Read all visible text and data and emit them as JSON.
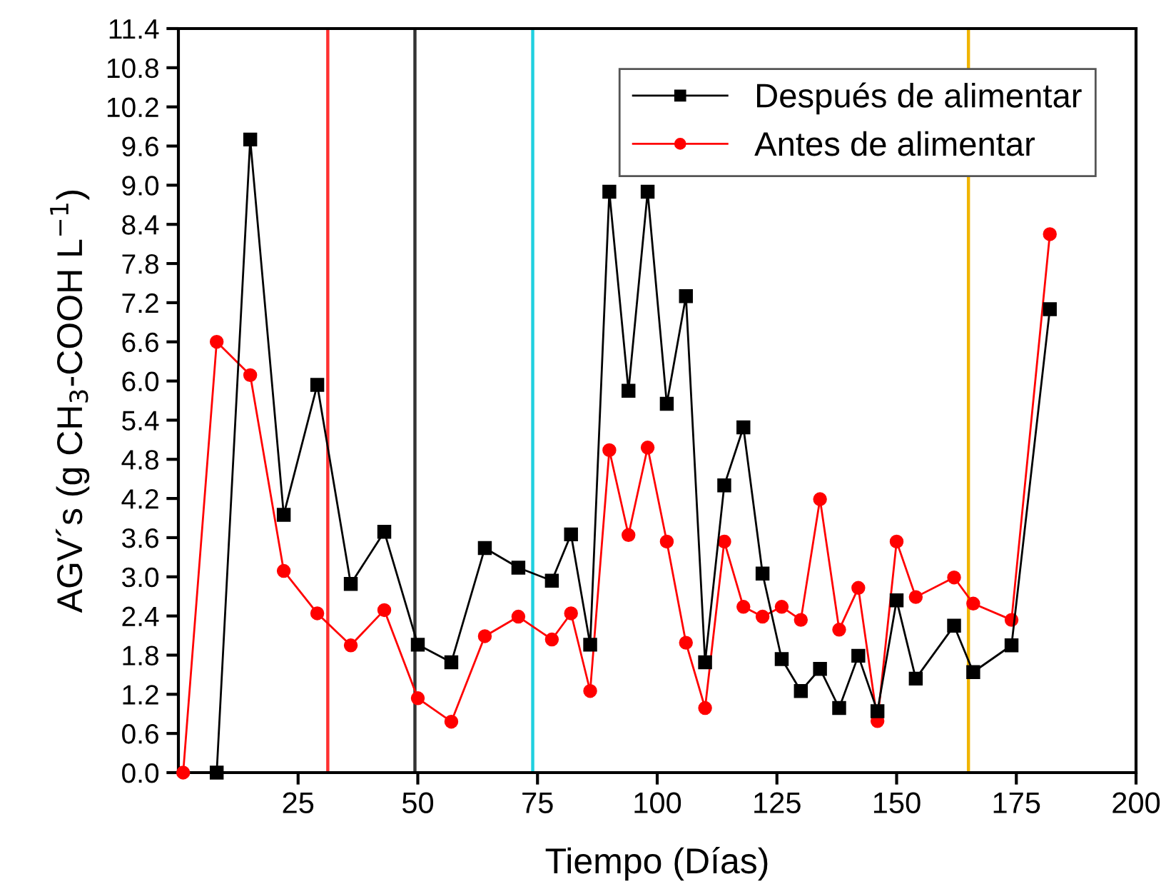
{
  "chart_data": {
    "type": "line",
    "xlabel": "Tiempo (Días)",
    "ylabel": "AGV´s (g CH$_{3}$-COOH L$^{−1}$)",
    "xlim": [
      0,
      200
    ],
    "xticks": [
      25,
      50,
      75,
      100,
      125,
      150,
      175,
      200
    ],
    "ylim": [
      0,
      11.4
    ],
    "yticks": [
      {
        "value": 0,
        "label": "0.0"
      },
      0.6,
      1.2,
      1.8,
      2.4,
      {
        "value": 3,
        "label": "3.0"
      },
      3.6,
      4.2,
      4.8,
      5.4,
      {
        "value": 6,
        "label": "6.0"
      },
      6.6,
      7.2,
      7.8,
      8.4,
      {
        "value": 9,
        "label": "9.0"
      },
      9.6,
      10.2,
      10.8,
      11.4
    ],
    "grid": false,
    "legend": "top right",
    "series": [
      {
        "name": "Después de alimentar",
        "color": "#000000",
        "marker": "square",
        "x": [
          8,
          15,
          22,
          29,
          36,
          43,
          50,
          57,
          64,
          71,
          78,
          82,
          86,
          90,
          94,
          98,
          102,
          106,
          110,
          114,
          118,
          122,
          126,
          130,
          134,
          138,
          142,
          146,
          150,
          154,
          162,
          166,
          174,
          182
        ],
        "values": [
          0,
          9.7,
          3.95,
          5.94,
          2.89,
          3.69,
          1.96,
          1.69,
          3.44,
          3.14,
          2.94,
          3.65,
          1.96,
          8.9,
          5.85,
          8.9,
          5.65,
          7.3,
          1.69,
          4.4,
          5.29,
          3.05,
          1.74,
          1.25,
          1.59,
          0.99,
          1.79,
          0.94,
          2.64,
          1.44,
          2.25,
          1.54,
          1.95,
          7.1
        ]
      },
      {
        "name": "Antes de alimentar",
        "color": "#ff0000",
        "marker": "circle",
        "x": [
          1,
          8,
          15,
          22,
          29,
          36,
          43,
          50,
          57,
          64,
          71,
          78,
          82,
          86,
          90,
          94,
          98,
          102,
          106,
          110,
          114,
          118,
          122,
          126,
          130,
          134,
          138,
          142,
          146,
          150,
          154,
          162,
          166,
          174,
          182
        ],
        "values": [
          0,
          6.6,
          6.09,
          3.09,
          2.44,
          1.95,
          2.49,
          1.14,
          0.78,
          2.09,
          2.39,
          2.04,
          2.44,
          1.25,
          4.94,
          3.64,
          4.98,
          3.54,
          1.99,
          0.99,
          3.54,
          2.54,
          2.39,
          2.54,
          2.34,
          4.19,
          2.19,
          2.83,
          0.79,
          3.54,
          2.69,
          2.99,
          2.59,
          2.34,
          8.25
        ]
      }
    ],
    "ref_lines": [
      {
        "axis": "x",
        "value": 31.2,
        "color": "#ff3030"
      },
      {
        "axis": "x",
        "value": 49.4,
        "color": "#333333"
      },
      {
        "axis": "x",
        "value": 74,
        "color": "#20d0e0"
      },
      {
        "axis": "x",
        "value": 165,
        "color": "#f0b400"
      }
    ]
  }
}
